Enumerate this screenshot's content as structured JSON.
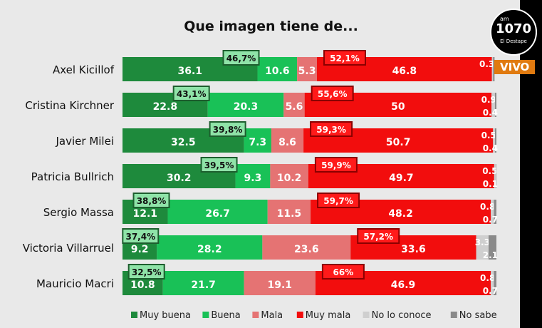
{
  "overlay": {
    "logo_am": "am",
    "logo_number": "1070",
    "logo_name": "El Destape",
    "live_badge": "VIVO"
  },
  "chart_data": {
    "type": "bar",
    "orientation": "horizontal-stacked-100",
    "title": "Que imagen tiene de...",
    "categories": [
      "Axel Kicillof",
      "Cristina Kirchner",
      "Javier Milei",
      "Patricia Bullrich",
      "Sergio Massa",
      "Victoria Villarruel",
      "Mauricio Macri"
    ],
    "series": [
      {
        "name": "Muy buena",
        "color": "#1e8a3c",
        "values": [
          36.1,
          22.8,
          32.5,
          30.2,
          12.1,
          9.2,
          10.8
        ]
      },
      {
        "name": "Buena",
        "color": "#19c157",
        "values": [
          10.6,
          20.3,
          7.3,
          9.3,
          26.7,
          28.2,
          21.7
        ]
      },
      {
        "name": "Mala",
        "color": "#e57373",
        "values": [
          5.3,
          5.6,
          8.6,
          10.2,
          11.5,
          23.6,
          19.1
        ]
      },
      {
        "name": "Muy mala",
        "color": "#f20d0d",
        "values": [
          46.8,
          50,
          50.7,
          49.7,
          48.2,
          33.6,
          46.9
        ]
      },
      {
        "name": "No lo conoce",
        "color": "#cfcfcf",
        "values": [
          0.3,
          0.9,
          0.5,
          0.5,
          0.8,
          3.3,
          0.8
        ]
      },
      {
        "name": "No sabe",
        "color": "#8a8a8a",
        "values": [
          null,
          0.4,
          0.4,
          0.1,
          0.7,
          2.1,
          0.7
        ]
      }
    ],
    "positive_totals": [
      "46,7%",
      "43,1%",
      "39,8%",
      "39,5%",
      "38,8%",
      "37,4%",
      "32,5%"
    ],
    "negative_totals": [
      "52,1%",
      "55,6%",
      "59,3%",
      "59,9%",
      "59,7%",
      "57,2%",
      "66%"
    ],
    "xlim": [
      0,
      100
    ],
    "legend_position": "bottom",
    "grid": false
  }
}
